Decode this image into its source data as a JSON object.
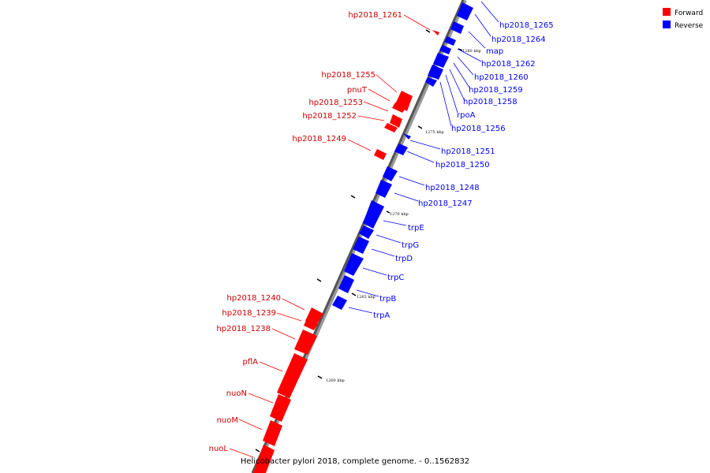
{
  "diagram": {
    "caption": "Helicobacter pylori 2018, complete genome. - 0..1562832",
    "legend": [
      {
        "label": "Forward",
        "color": "#ff0000"
      },
      {
        "label": "Reverse",
        "color": "#0000ff"
      }
    ],
    "ticks": [
      "1280 kbp",
      "1275 kbp",
      "1270 kbp",
      "1265 kbp",
      "1260 kbp"
    ],
    "forward_color": "#ff0000",
    "reverse_color": "#0000ff",
    "genes_reverse": [
      "hp2018_1265",
      "hp2018_1264",
      "map",
      "hp2018_1262",
      "hp2018_1260",
      "hp2018_1259",
      "hp2018_1258",
      "rpoA",
      "hp2018_1256",
      "hp2018_1251",
      "hp2018_1250",
      "hp2018_1248",
      "hp2018_1247",
      "trpE",
      "trpG",
      "trpD",
      "trpC",
      "trpB",
      "trpA"
    ],
    "genes_forward": [
      "hp2018_1261",
      "hp2018_1255",
      "pnuT",
      "hp2018_1253",
      "hp2018_1252",
      "hp2018_1249",
      "hp2018_1240",
      "hp2018_1239",
      "hp2018_1238",
      "pflA",
      "nuoN",
      "nuoM",
      "nuoL"
    ]
  }
}
